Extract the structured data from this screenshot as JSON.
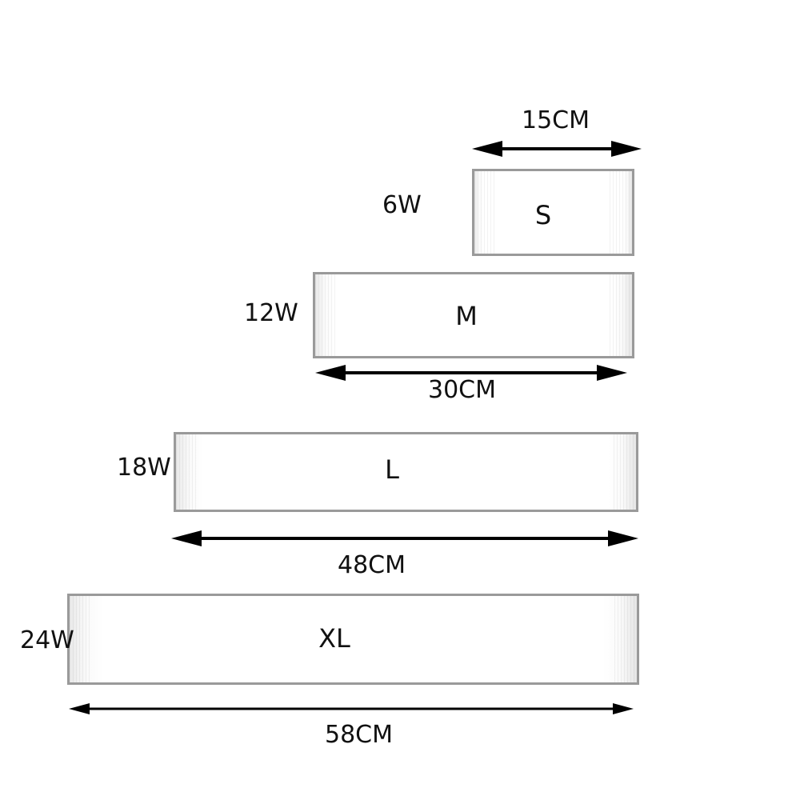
{
  "items": [
    {
      "size": "S",
      "power": "6W",
      "length": "15CM"
    },
    {
      "size": "M",
      "power": "12W",
      "length": "30CM"
    },
    {
      "size": "L",
      "power": "18W",
      "length": "48CM"
    },
    {
      "size": "XL",
      "power": "24W",
      "length": "58CM"
    }
  ]
}
